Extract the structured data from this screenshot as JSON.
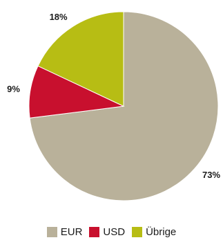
{
  "chart_data": {
    "type": "pie",
    "slices": [
      {
        "label": "EUR",
        "value": 73,
        "value_label": "73%",
        "color": "#b9b19a"
      },
      {
        "label": "USD",
        "value": 9,
        "value_label": "9%",
        "color": "#c8102e"
      },
      {
        "label": "Übrige",
        "value": 18,
        "value_label": "18%",
        "color": "#b7bd14"
      }
    ],
    "legend_position": "bottom",
    "start": "top, clockwise"
  }
}
